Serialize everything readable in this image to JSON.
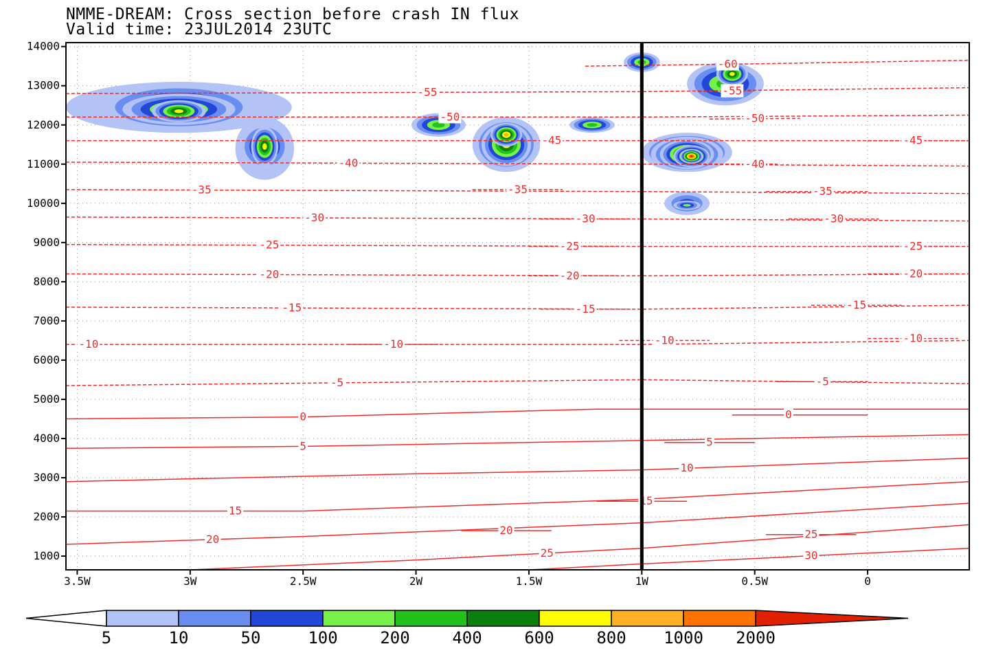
{
  "chart_data": {
    "type": "heatmap",
    "title": "NMME-DREAM: Cross section before crash IN flux",
    "subtitle": "Valid time: 23JUL2014 23UTC",
    "xlabel": "",
    "ylabel": "",
    "x_range": [
      -3.55,
      0.45
    ],
    "y_range": [
      650,
      14100
    ],
    "x_ticks": [
      {
        "value": -3.5,
        "label": "3.5W"
      },
      {
        "value": -3.0,
        "label": "3W"
      },
      {
        "value": -2.5,
        "label": "2.5W"
      },
      {
        "value": -2.0,
        "label": "2W"
      },
      {
        "value": -1.5,
        "label": "1.5W"
      },
      {
        "value": -1.0,
        "label": "1W"
      },
      {
        "value": -0.5,
        "label": "0.5W"
      },
      {
        "value": 0.0,
        "label": "0"
      }
    ],
    "y_ticks": [
      1000,
      2000,
      3000,
      4000,
      5000,
      6000,
      7000,
      8000,
      9000,
      10000,
      11000,
      12000,
      13000,
      14000
    ],
    "grid": "dotted",
    "crash_line_x": -1.0,
    "colorbar": {
      "levels": [
        "5",
        "10",
        "50",
        "100",
        "200",
        "400",
        "600",
        "800",
        "1000",
        "2000"
      ],
      "colors": [
        "#b4c3f5",
        "#6a8ef0",
        "#2146d8",
        "#76f24a",
        "#23c11b",
        "#0b7f0b",
        "#ffff00",
        "#ffb024",
        "#ff7200",
        "#e02000"
      ],
      "below_color": "#ffffff",
      "above_color": "#e02000"
    },
    "flux_cells": [
      {
        "x": -3.05,
        "y": 12450,
        "rx": 0.5,
        "ry": 650,
        "level": 2
      },
      {
        "x": -3.05,
        "y": 12450,
        "rx": 0.35,
        "ry": 600,
        "level": 4
      },
      {
        "x": -3.05,
        "y": 12400,
        "rx": 0.25,
        "ry": 400,
        "level": 5
      },
      {
        "x": -3.05,
        "y": 12350,
        "rx": 0.12,
        "ry": 280,
        "level": 6
      },
      {
        "x": -2.67,
        "y": 11400,
        "rx": 0.13,
        "ry": 800,
        "level": 2
      },
      {
        "x": -2.67,
        "y": 11450,
        "rx": 0.11,
        "ry": 600,
        "level": 4
      },
      {
        "x": -2.67,
        "y": 11450,
        "rx": 0.06,
        "ry": 500,
        "level": 6
      },
      {
        "x": -1.6,
        "y": 11500,
        "rx": 0.15,
        "ry": 700,
        "level": 4
      },
      {
        "x": -1.6,
        "y": 11500,
        "rx": 0.11,
        "ry": 550,
        "level": 6
      },
      {
        "x": -1.6,
        "y": 11750,
        "rx": 0.07,
        "ry": 300,
        "level": 7
      },
      {
        "x": -1.9,
        "y": 12000,
        "rx": 0.12,
        "ry": 300,
        "level": 4
      },
      {
        "x": -1.22,
        "y": 12000,
        "rx": 0.1,
        "ry": 200,
        "level": 4
      },
      {
        "x": -0.63,
        "y": 13050,
        "rx": 0.17,
        "ry": 550,
        "level": 4
      },
      {
        "x": -0.6,
        "y": 13300,
        "rx": 0.07,
        "ry": 300,
        "level": 6
      },
      {
        "x": -1.0,
        "y": 13600,
        "rx": 0.08,
        "ry": 250,
        "level": 4
      },
      {
        "x": -0.8,
        "y": 11300,
        "rx": 0.2,
        "ry": 500,
        "level": 5
      },
      {
        "x": -0.8,
        "y": 11250,
        "rx": 0.16,
        "ry": 450,
        "level": 6
      },
      {
        "x": -0.8,
        "y": 11250,
        "rx": 0.12,
        "ry": 380,
        "level": 7
      },
      {
        "x": -0.78,
        "y": 11200,
        "rx": 0.08,
        "ry": 280,
        "level": 8
      },
      {
        "x": -0.78,
        "y": 11200,
        "rx": 0.05,
        "ry": 180,
        "level": 9
      },
      {
        "x": -0.8,
        "y": 10000,
        "rx": 0.1,
        "ry": 300,
        "level": 2
      },
      {
        "x": -0.8,
        "y": 9950,
        "rx": 0.06,
        "ry": 120,
        "level": 3
      }
    ],
    "temperature_contours": [
      {
        "value": -60,
        "label": "-60",
        "label_x": -0.62,
        "x": [
          -1.25,
          -0.6,
          0.45
        ],
        "y": [
          13500,
          13550,
          13650
        ],
        "dashed": true
      },
      {
        "value": -55,
        "label": "-55",
        "label_x": -1.95,
        "x": [
          -3.55,
          -1.0,
          0.45
        ],
        "y": [
          12800,
          12850,
          12950
        ],
        "dashed": true
      },
      {
        "value": -55,
        "label": "-55",
        "label_x": -0.6,
        "x": [
          -0.75,
          -0.5
        ],
        "y": [
          12850,
          12870
        ],
        "dashed": true
      },
      {
        "value": -50,
        "label": "-50",
        "label_x": -1.85,
        "x": [
          -3.55,
          -1.0,
          0.45
        ],
        "y": [
          12200,
          12200,
          12250
        ],
        "dashed": true
      },
      {
        "value": -50,
        "label": "-50",
        "label_x": -0.5,
        "x": [
          -0.7,
          -0.3
        ],
        "y": [
          12150,
          12170
        ],
        "dashed": true
      },
      {
        "value": -45,
        "label": "-45",
        "label_x": -1.4,
        "x": [
          -3.55,
          -1.0,
          0.45
        ],
        "y": [
          11600,
          11600,
          11600
        ],
        "dashed": true
      },
      {
        "value": -45,
        "label": "-45",
        "label_x": 0.2,
        "x": [
          0.0,
          0.45
        ],
        "y": [
          11600,
          11600
        ],
        "dashed": true
      },
      {
        "value": -40,
        "label": "-40",
        "label_x": -2.3,
        "x": [
          -3.55,
          -1.0,
          0.45
        ],
        "y": [
          11050,
          11000,
          10950
        ],
        "dashed": true
      },
      {
        "value": -40,
        "label": "-40",
        "label_x": -0.5,
        "x": [
          -0.8,
          -0.4
        ],
        "y": [
          11000,
          11000
        ],
        "dashed": true
      },
      {
        "value": -35,
        "label": "-35",
        "label_x": -2.95,
        "x": [
          -3.55,
          -1.0,
          0.45
        ],
        "y": [
          10350,
          10300,
          10250
        ],
        "dashed": true
      },
      {
        "value": -35,
        "label": "-35",
        "label_x": -1.55,
        "x": [
          -1.75,
          -1.35
        ],
        "y": [
          10350,
          10350
        ],
        "dashed": true
      },
      {
        "value": -35,
        "label": "-35",
        "label_x": -0.2,
        "x": [
          -0.45,
          0.0
        ],
        "y": [
          10300,
          10300
        ],
        "dashed": true
      },
      {
        "value": -30,
        "label": "-30",
        "label_x": -2.45,
        "x": [
          -3.55,
          -1.0,
          0.45
        ],
        "y": [
          9650,
          9600,
          9550
        ],
        "dashed": true
      },
      {
        "value": -30,
        "label": "-30",
        "label_x": -1.25,
        "x": [
          -1.45,
          -1.05
        ],
        "y": [
          9600,
          9600
        ],
        "dashed": true
      },
      {
        "value": -30,
        "label": "-30",
        "label_x": -0.15,
        "x": [
          -0.35,
          0.05
        ],
        "y": [
          9600,
          9600
        ],
        "dashed": true
      },
      {
        "value": -25,
        "label": "-25",
        "label_x": -2.65,
        "x": [
          -3.55,
          -1.0,
          0.45
        ],
        "y": [
          8950,
          8900,
          8900
        ],
        "dashed": true
      },
      {
        "value": -25,
        "label": "-25",
        "label_x": -1.32,
        "x": [
          -1.5,
          -1.1
        ],
        "y": [
          8900,
          8900
        ],
        "dashed": true
      },
      {
        "value": -25,
        "label": "-25",
        "label_x": 0.2,
        "x": [
          0.0,
          0.4
        ],
        "y": [
          8900,
          8900
        ],
        "dashed": true
      },
      {
        "value": -20,
        "label": "-20",
        "label_x": -2.65,
        "x": [
          -3.55,
          -1.0,
          0.45
        ],
        "y": [
          8200,
          8150,
          8200
        ],
        "dashed": true
      },
      {
        "value": -20,
        "label": "-20",
        "label_x": -1.32,
        "x": [
          -1.5,
          -1.1
        ],
        "y": [
          8150,
          8150
        ],
        "dashed": true
      },
      {
        "value": -20,
        "label": "-20",
        "label_x": 0.2,
        "x": [
          0.0,
          0.4
        ],
        "y": [
          8200,
          8200
        ],
        "dashed": true
      },
      {
        "value": -15,
        "label": "-15",
        "label_x": -2.55,
        "x": [
          -3.55,
          -1.0,
          0.45
        ],
        "y": [
          7350,
          7300,
          7400
        ],
        "dashed": true
      },
      {
        "value": -15,
        "label": "-15",
        "label_x": -1.25,
        "x": [
          -1.45,
          -1.05
        ],
        "y": [
          7300,
          7300
        ],
        "dashed": true
      },
      {
        "value": -15,
        "label": "-15",
        "label_x": -0.05,
        "x": [
          -0.25,
          0.15
        ],
        "y": [
          7400,
          7400
        ],
        "dashed": true
      },
      {
        "value": -10,
        "label": "-10",
        "label_x": -3.45,
        "x": [
          -3.55,
          -1.0,
          0.45
        ],
        "y": [
          6400,
          6400,
          6500
        ],
        "dashed": true
      },
      {
        "value": -10,
        "label": "-10",
        "label_x": -2.1,
        "x": [
          -2.3,
          -1.9
        ],
        "y": [
          6400,
          6400
        ],
        "dashed": true
      },
      {
        "value": -10,
        "label": "-10",
        "label_x": -0.9,
        "x": [
          -1.1,
          -0.7
        ],
        "y": [
          6500,
          6500
        ],
        "dashed": true
      },
      {
        "value": -10,
        "label": "-10",
        "label_x": 0.2,
        "x": [
          0.0,
          0.4
        ],
        "y": [
          6550,
          6550
        ],
        "dashed": true
      },
      {
        "value": -5,
        "label": "-5",
        "label_x": -2.35,
        "x": [
          -3.55,
          -1.0,
          0.45
        ],
        "y": [
          5350,
          5500,
          5400
        ],
        "dashed": true
      },
      {
        "value": -5,
        "label": "-5",
        "label_x": -0.2,
        "x": [
          -0.4,
          0.0
        ],
        "y": [
          5450,
          5450
        ],
        "dashed": true
      },
      {
        "value": 0,
        "label": "0",
        "label_x": -2.5,
        "x": [
          -3.55,
          -2.5,
          -1.2,
          0.45
        ],
        "y": [
          4500,
          4550,
          4750,
          4750
        ],
        "dashed": false
      },
      {
        "value": 0,
        "label": "0",
        "label_x": -0.35,
        "x": [
          -0.6,
          0.0
        ],
        "y": [
          4600,
          4600
        ],
        "dashed": false
      },
      {
        "value": 5,
        "label": "5",
        "label_x": -2.5,
        "x": [
          -3.55,
          -2.5,
          -1.0,
          0.45
        ],
        "y": [
          3750,
          3800,
          3950,
          4100
        ],
        "dashed": false
      },
      {
        "value": 5,
        "label": "5",
        "label_x": -0.7,
        "x": [
          -0.9,
          -0.5
        ],
        "y": [
          3900,
          3900
        ],
        "dashed": false
      },
      {
        "value": 10,
        "label": "10",
        "label_x": -0.8,
        "x": [
          -3.55,
          -2.0,
          -1.0,
          0.45
        ],
        "y": [
          2900,
          3100,
          3200,
          3500
        ],
        "dashed": false
      },
      {
        "value": 15,
        "label": "15",
        "label_x": -2.8,
        "x": [
          -3.55,
          -2.5,
          -1.0,
          0.45
        ],
        "y": [
          2150,
          2150,
          2450,
          2900
        ],
        "dashed": false
      },
      {
        "value": 15,
        "label": "15",
        "label_x": -0.98,
        "x": [
          -1.2,
          -0.8
        ],
        "y": [
          2400,
          2400
        ],
        "dashed": false
      },
      {
        "value": 20,
        "label": "20",
        "label_x": -2.9,
        "x": [
          -3.55,
          -2.5,
          -1.0,
          0.45
        ],
        "y": [
          1300,
          1500,
          1850,
          2350
        ],
        "dashed": false
      },
      {
        "value": 20,
        "label": "20",
        "label_x": -1.6,
        "x": [
          -1.8,
          -1.4
        ],
        "y": [
          1650,
          1650
        ],
        "dashed": false
      },
      {
        "value": 25,
        "label": "25",
        "label_x": -1.42,
        "x": [
          -3.0,
          -2.0,
          -1.0,
          0.45
        ],
        "y": [
          650,
          900,
          1200,
          1800
        ],
        "dashed": false
      },
      {
        "value": 25,
        "label": "25",
        "label_x": -0.25,
        "x": [
          -0.45,
          -0.05
        ],
        "y": [
          1550,
          1550
        ],
        "dashed": false
      },
      {
        "value": 30,
        "label": "30",
        "label_x": -0.25,
        "x": [
          -1.5,
          -1.0,
          0.45
        ],
        "y": [
          650,
          800,
          1200
        ],
        "dashed": false
      }
    ]
  }
}
